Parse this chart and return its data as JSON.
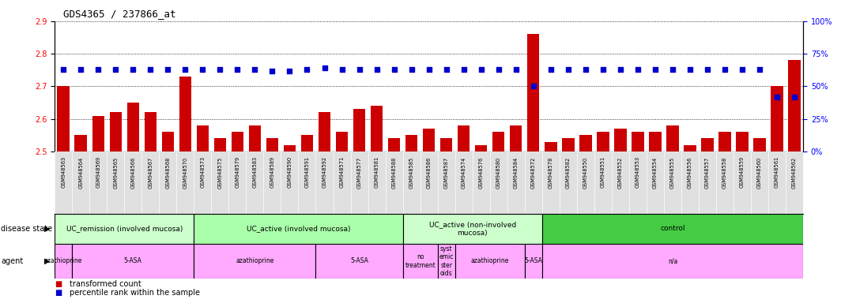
{
  "title": "GDS4365 / 237866_at",
  "samples": [
    "GSM948563",
    "GSM948564",
    "GSM948569",
    "GSM948565",
    "GSM948566",
    "GSM948567",
    "GSM948568",
    "GSM948570",
    "GSM948573",
    "GSM948575",
    "GSM948579",
    "GSM948583",
    "GSM948589",
    "GSM948590",
    "GSM948591",
    "GSM948592",
    "GSM948571",
    "GSM948577",
    "GSM948581",
    "GSM948588",
    "GSM948585",
    "GSM948586",
    "GSM948587",
    "GSM948574",
    "GSM948576",
    "GSM948580",
    "GSM948584",
    "GSM948572",
    "GSM948578",
    "GSM948582",
    "GSM948550",
    "GSM948551",
    "GSM948552",
    "GSM948553",
    "GSM948554",
    "GSM948555",
    "GSM948556",
    "GSM948557",
    "GSM948558",
    "GSM948559",
    "GSM948560",
    "GSM948561",
    "GSM948562"
  ],
  "bar_values": [
    2.7,
    2.55,
    2.61,
    2.62,
    2.65,
    2.62,
    2.56,
    2.73,
    2.58,
    2.54,
    2.56,
    2.58,
    2.54,
    2.52,
    2.55,
    2.62,
    2.56,
    2.63,
    2.64,
    2.54,
    2.55,
    2.57,
    2.54,
    2.58,
    2.52,
    2.56,
    2.58,
    2.86,
    2.53,
    2.54,
    2.55,
    2.56,
    2.57,
    2.56,
    2.56,
    2.58,
    2.52,
    2.54,
    2.56,
    2.56,
    2.54,
    2.7,
    2.78
  ],
  "percentile_values_pct": [
    63,
    63,
    63,
    63,
    63,
    63,
    63,
    63,
    63,
    63,
    63,
    63,
    62,
    62,
    63,
    64,
    63,
    63,
    63,
    63,
    63,
    63,
    63,
    63,
    63,
    63,
    63,
    50,
    63,
    63,
    63,
    63,
    63,
    63,
    63,
    63,
    63,
    63,
    63,
    63,
    63,
    42,
    42
  ],
  "ylim_left": [
    2.5,
    2.9
  ],
  "yticks_left": [
    2.5,
    2.6,
    2.7,
    2.8,
    2.9
  ],
  "yticks_right_pct": [
    0,
    25,
    50,
    75,
    100
  ],
  "bar_color": "#cc0000",
  "dot_color": "#0000cc",
  "bar_bottom": 2.5,
  "disease_state_groups": [
    {
      "label": "UC_remission (involved mucosa)",
      "start": 0,
      "end": 7,
      "color": "#ccffcc"
    },
    {
      "label": "UC_active (involved mucosa)",
      "start": 8,
      "end": 19,
      "color": "#aaffaa"
    },
    {
      "label": "UC_active (non-involved\nmucosa)",
      "start": 20,
      "end": 27,
      "color": "#ccffcc"
    },
    {
      "label": "control",
      "start": 28,
      "end": 42,
      "color": "#44cc44"
    }
  ],
  "agent_groups": [
    {
      "label": "azathioprine",
      "start": 0,
      "end": 0
    },
    {
      "label": "5-ASA",
      "start": 1,
      "end": 7
    },
    {
      "label": "azathioprine",
      "start": 8,
      "end": 14
    },
    {
      "label": "5-ASA",
      "start": 15,
      "end": 19
    },
    {
      "label": "no\ntreatment",
      "start": 20,
      "end": 21
    },
    {
      "label": "syst\nemic\nster\noids",
      "start": 22,
      "end": 22
    },
    {
      "label": "azathioprine",
      "start": 23,
      "end": 26
    },
    {
      "label": "5-ASA",
      "start": 27,
      "end": 27
    },
    {
      "label": "n/a",
      "start": 28,
      "end": 42
    }
  ],
  "background_color": "#ffffff",
  "chart_bg": "#ffffff",
  "xtick_bg": "#e0e0e0"
}
